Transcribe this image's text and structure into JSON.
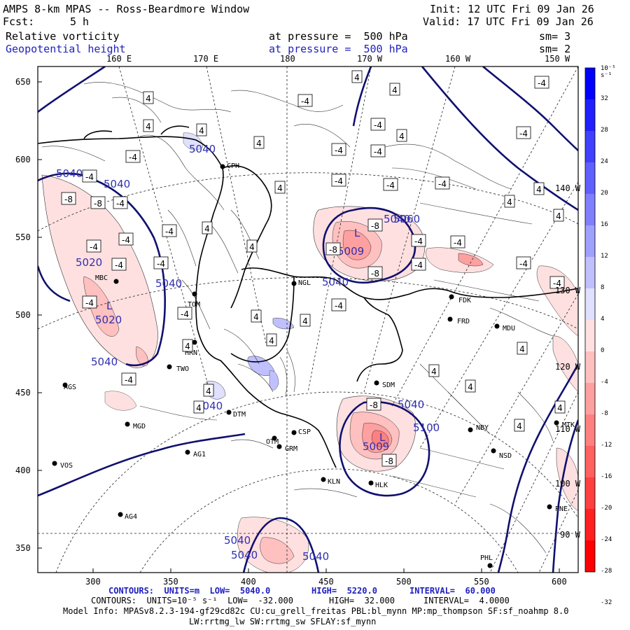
{
  "header": {
    "title": "AMPS 8-km MPAS -- Ross-Beardmore Window",
    "fcst_label": "Fcst:",
    "fcst_value": "5 h",
    "init": "Init: 12 UTC Fri 09 Jan 26",
    "valid": "Valid: 17 UTC Fri 09 Jan 26",
    "field1": "Relative vorticity",
    "field1_pressure": "at pressure =  500 hPa",
    "field1_sm": "sm= 3",
    "field2": "Geopotential height",
    "field2_pressure": "at pressure =  500 hPa",
    "field2_sm": "sm= 2"
  },
  "lon_labels_top": [
    "160 E",
    "170 E",
    "180",
    "170 W",
    "160 W",
    "150 W"
  ],
  "lon_labels_right": [
    "140 W",
    "130 W",
    "120 W",
    "110 W",
    "100 W",
    "90 W"
  ],
  "y_ticks": [
    "650",
    "600",
    "550",
    "500",
    "450",
    "400",
    "350"
  ],
  "x_ticks": [
    "300",
    "350",
    "400",
    "450",
    "500",
    "550",
    "600"
  ],
  "colorbar": {
    "unit": "10⁻⁵ s⁻¹",
    "labels": [
      "32",
      "28",
      "24",
      "20",
      "16",
      "12",
      "8",
      "4",
      "0",
      "-4",
      "-8",
      "-12",
      "-16",
      "-20",
      "-24",
      "-28",
      "-32"
    ],
    "blue_colors": [
      "#0000ff",
      "#2020ff",
      "#4040ff",
      "#6060ff",
      "#8080ff",
      "#a0a0ff",
      "#c0c0ff",
      "#e0e0ff"
    ],
    "red_colors": [
      "#ffe0e0",
      "#ffc0c0",
      "#ffa0a0",
      "#ff8080",
      "#ff6060",
      "#ff4040",
      "#ff2020",
      "#ff0000"
    ]
  },
  "stations": [
    {
      "name": "CPH"
    },
    {
      "name": "NGL"
    },
    {
      "name": "MBC"
    },
    {
      "name": "TOM"
    },
    {
      "name": "HRN"
    },
    {
      "name": "TWO"
    },
    {
      "name": "AGS"
    },
    {
      "name": "MGD"
    },
    {
      "name": "AG1"
    },
    {
      "name": "VOS"
    },
    {
      "name": "AG4"
    },
    {
      "name": "SDM"
    },
    {
      "name": "DTM"
    },
    {
      "name": "OTM"
    },
    {
      "name": "GRM"
    },
    {
      "name": "CSP"
    },
    {
      "name": "KLN"
    },
    {
      "name": "HLK"
    },
    {
      "name": "FDK"
    },
    {
      "name": "FRD"
    },
    {
      "name": "MDU"
    },
    {
      "name": "NBY"
    },
    {
      "name": "MTK"
    },
    {
      "name": "NSD"
    },
    {
      "name": "PNE"
    },
    {
      "name": "PHL"
    }
  ],
  "height_labels": [
    "5040",
    "5040",
    "5040",
    "5020",
    "5020",
    "5040",
    "5040",
    "5040",
    "5009",
    "5040",
    "5040",
    "5100",
    "5040",
    "5040",
    "5009",
    "5040",
    "5040",
    "5060"
  ],
  "vort_labels_4": [
    "4",
    "4",
    "4",
    "4",
    "4",
    "4",
    "4",
    "4",
    "4",
    "4",
    "4",
    "4",
    "4",
    "4",
    "4",
    "4",
    "4",
    "4",
    "4",
    "4",
    "4",
    "4",
    "4",
    "4"
  ],
  "vort_labels_m4": [
    "-4",
    "-4",
    "-4",
    "-4",
    "-4",
    "-4",
    "-4",
    "-4",
    "-4",
    "-4",
    "-4",
    "-4",
    "-4",
    "-4",
    "-4",
    "-4",
    "-4",
    "-4",
    "-4",
    "-4",
    "-4",
    "-4",
    "-4",
    "-4",
    "-4",
    "-4"
  ],
  "vort_labels_m8": [
    "-8",
    "-8",
    "-8",
    "-8",
    "-8",
    "-8",
    "-8"
  ],
  "low_markers": [
    "L",
    "L",
    "L"
  ],
  "footer": {
    "line1_prefix": "CONTOURS:  UNITS=m  LOW=  5040.0",
    "line1_high": "HIGH=  5220.0",
    "line1_interval": "INTERVAL=  60.000",
    "line2_prefix": "CONTOURS:  UNITS=10⁻⁵ s⁻¹  LOW=  -32.000",
    "line2_high": "HIGH=  32.000",
    "line2_interval": "INTERVAL=  4.0000",
    "model_info": "Model Info: MPASv8.2.3-194-gf29cd82c CU:cu_grell_freitas PBL:bl_mynn MP:mp_thompson SF:sf_noahmp 8.0",
    "model_info2": "LW:rrtmg_lw SW:rrtmg_sw SFLAY:sf_mynn"
  }
}
